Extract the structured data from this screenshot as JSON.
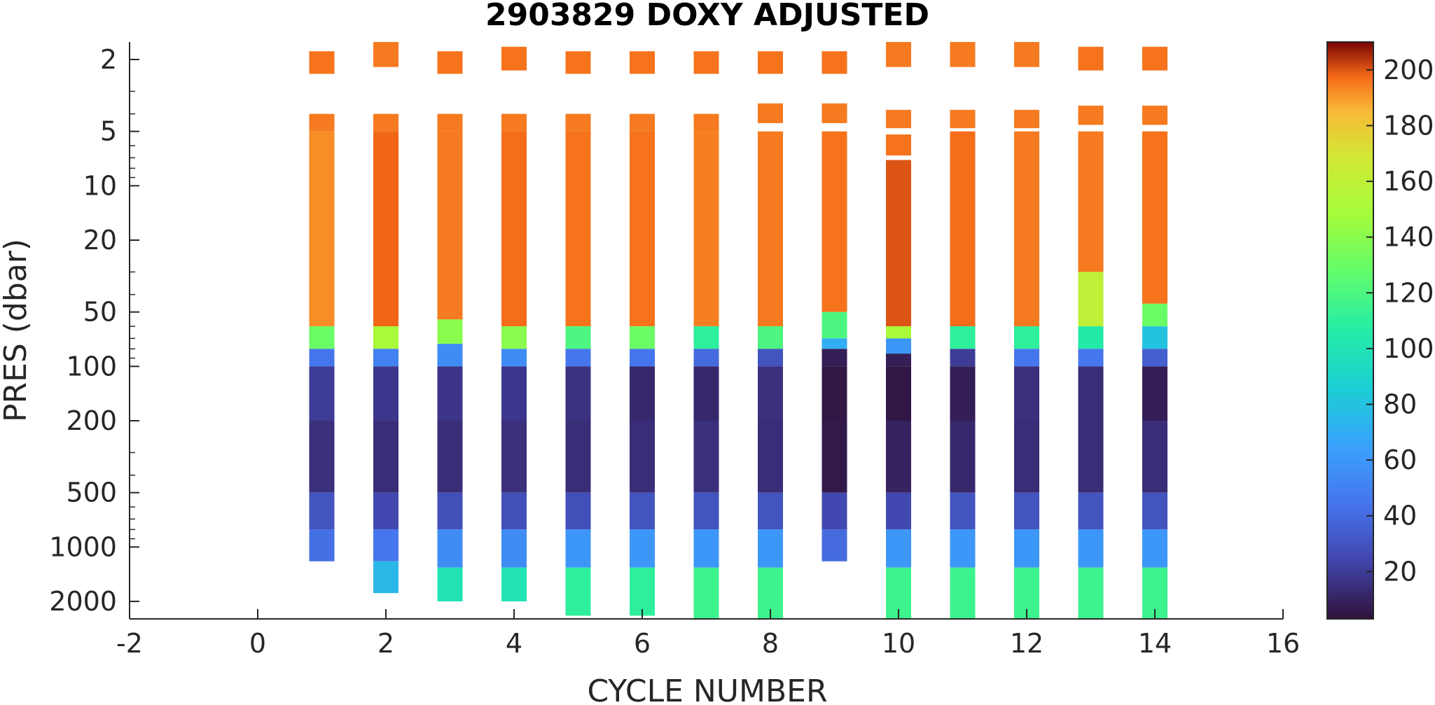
{
  "chart_data": {
    "type": "heatmap",
    "title": "2903829  DOXY ADJUSTED",
    "xlabel": "CYCLE NUMBER",
    "ylabel": "PRES (dbar)",
    "xlim": [
      -2,
      16
    ],
    "x_ticks": [
      -2,
      0,
      2,
      4,
      6,
      8,
      10,
      12,
      14,
      16
    ],
    "y_scale": "log",
    "y_reversed": true,
    "ylim": [
      1.6,
      2500
    ],
    "y_ticks": [
      2,
      5,
      10,
      20,
      50,
      100,
      200,
      500,
      1000,
      2000
    ],
    "colorbar": {
      "colormap": "turbo",
      "clim": [
        3,
        210
      ],
      "ticks": [
        20,
        40,
        60,
        80,
        100,
        120,
        140,
        160,
        180,
        200
      ],
      "position": "right"
    },
    "profiles": [
      {
        "cycle": 1,
        "surface": [
          [
            1.8,
            2.4,
            196
          ]
        ],
        "profile": [
          [
            4.0,
            5.0,
            195
          ],
          [
            5.0,
            60,
            192
          ],
          [
            60,
            80,
            130
          ],
          [
            80,
            100,
            45
          ],
          [
            100,
            200,
            20
          ],
          [
            200,
            500,
            15
          ],
          [
            500,
            800,
            30
          ],
          [
            800,
            1200,
            42
          ]
        ]
      },
      {
        "cycle": 2,
        "surface": [
          [
            1.6,
            2.2,
            195
          ]
        ],
        "profile": [
          [
            4.0,
            5.0,
            195
          ],
          [
            5.0,
            60,
            198
          ],
          [
            60,
            80,
            150
          ],
          [
            80,
            100,
            50
          ],
          [
            100,
            200,
            18
          ],
          [
            200,
            500,
            14
          ],
          [
            500,
            800,
            25
          ],
          [
            800,
            1200,
            45
          ],
          [
            1200,
            1800,
            75
          ]
        ]
      },
      {
        "cycle": 3,
        "surface": [
          [
            1.8,
            2.4,
            196
          ]
        ],
        "profile": [
          [
            4.0,
            5.0,
            195
          ],
          [
            5.0,
            55,
            195
          ],
          [
            55,
            75,
            140
          ],
          [
            75,
            100,
            55
          ],
          [
            100,
            200,
            17
          ],
          [
            200,
            500,
            14
          ],
          [
            500,
            800,
            28
          ],
          [
            800,
            1300,
            55
          ],
          [
            1300,
            2000,
            100
          ]
        ]
      },
      {
        "cycle": 4,
        "surface": [
          [
            1.7,
            2.3,
            196
          ]
        ],
        "profile": [
          [
            4.0,
            5.0,
            195
          ],
          [
            5.0,
            60,
            197
          ],
          [
            60,
            80,
            140
          ],
          [
            80,
            100,
            55
          ],
          [
            100,
            200,
            18
          ],
          [
            200,
            500,
            15
          ],
          [
            500,
            800,
            28
          ],
          [
            800,
            1300,
            55
          ],
          [
            1300,
            2000,
            100
          ]
        ]
      },
      {
        "cycle": 5,
        "surface": [
          [
            1.8,
            2.4,
            196
          ]
        ],
        "profile": [
          [
            4.0,
            5.0,
            195
          ],
          [
            5.0,
            60,
            196
          ],
          [
            60,
            80,
            120
          ],
          [
            80,
            100,
            45
          ],
          [
            100,
            200,
            16
          ],
          [
            200,
            500,
            14
          ],
          [
            500,
            800,
            28
          ],
          [
            800,
            1300,
            60
          ],
          [
            1300,
            2400,
            110
          ]
        ]
      },
      {
        "cycle": 6,
        "surface": [
          [
            1.8,
            2.4,
            196
          ]
        ],
        "profile": [
          [
            4.0,
            5.0,
            195
          ],
          [
            5.0,
            60,
            196
          ],
          [
            60,
            80,
            130
          ],
          [
            80,
            100,
            45
          ],
          [
            100,
            200,
            12
          ],
          [
            200,
            500,
            14
          ],
          [
            500,
            800,
            30
          ],
          [
            800,
            1300,
            60
          ],
          [
            1300,
            2400,
            110
          ]
        ]
      },
      {
        "cycle": 7,
        "surface": [
          [
            1.8,
            2.4,
            196
          ]
        ],
        "profile": [
          [
            4.0,
            5.0,
            195
          ],
          [
            5.0,
            60,
            194
          ],
          [
            60,
            80,
            110
          ],
          [
            80,
            100,
            40
          ],
          [
            100,
            200,
            12
          ],
          [
            200,
            500,
            15
          ],
          [
            500,
            800,
            30
          ],
          [
            800,
            1300,
            60
          ],
          [
            1300,
            2500,
            115
          ]
        ]
      },
      {
        "cycle": 8,
        "surface": [
          [
            1.8,
            2.4,
            196
          ]
        ],
        "profile": [
          [
            3.5,
            4.5,
            195
          ],
          [
            5.0,
            60,
            195
          ],
          [
            60,
            80,
            120
          ],
          [
            80,
            100,
            30
          ],
          [
            100,
            200,
            15
          ],
          [
            200,
            500,
            14
          ],
          [
            500,
            800,
            30
          ],
          [
            800,
            1300,
            60
          ],
          [
            1300,
            2500,
            115
          ]
        ]
      },
      {
        "cycle": 9,
        "surface": [
          [
            1.8,
            2.4,
            196
          ]
        ],
        "profile": [
          [
            3.5,
            4.5,
            195
          ],
          [
            5.0,
            50,
            196
          ],
          [
            50,
            70,
            120
          ],
          [
            70,
            80,
            70
          ],
          [
            80,
            100,
            8
          ],
          [
            100,
            200,
            5
          ],
          [
            200,
            500,
            6
          ],
          [
            500,
            800,
            25
          ],
          [
            800,
            1200,
            40
          ]
        ]
      },
      {
        "cycle": 10,
        "surface": [
          [
            1.6,
            2.2,
            195
          ]
        ],
        "profile": [
          [
            3.8,
            4.8,
            195
          ],
          [
            5.2,
            6.8,
            196
          ],
          [
            7.2,
            60,
            200
          ],
          [
            60,
            70,
            150
          ],
          [
            70,
            85,
            60
          ],
          [
            85,
            100,
            8
          ],
          [
            100,
            200,
            5
          ],
          [
            200,
            500,
            10
          ],
          [
            500,
            800,
            25
          ],
          [
            800,
            1300,
            60
          ],
          [
            1300,
            2500,
            115
          ]
        ]
      },
      {
        "cycle": 11,
        "surface": [
          [
            1.6,
            2.2,
            195
          ]
        ],
        "profile": [
          [
            3.8,
            4.8,
            195
          ],
          [
            5.0,
            60,
            197
          ],
          [
            60,
            80,
            110
          ],
          [
            80,
            100,
            20
          ],
          [
            100,
            200,
            8
          ],
          [
            200,
            500,
            12
          ],
          [
            500,
            800,
            30
          ],
          [
            800,
            1300,
            60
          ],
          [
            1300,
            2500,
            115
          ]
        ]
      },
      {
        "cycle": 12,
        "surface": [
          [
            1.6,
            2.2,
            195
          ]
        ],
        "profile": [
          [
            3.8,
            4.8,
            195
          ],
          [
            5.0,
            60,
            195
          ],
          [
            60,
            80,
            110
          ],
          [
            80,
            100,
            45
          ],
          [
            100,
            200,
            15
          ],
          [
            200,
            500,
            14
          ],
          [
            500,
            800,
            30
          ],
          [
            800,
            1300,
            60
          ],
          [
            1300,
            2500,
            115
          ]
        ]
      },
      {
        "cycle": 13,
        "surface": [
          [
            1.7,
            2.3,
            196
          ]
        ],
        "profile": [
          [
            3.6,
            4.6,
            195
          ],
          [
            5.0,
            30,
            195
          ],
          [
            30,
            60,
            160
          ],
          [
            60,
            80,
            105
          ],
          [
            80,
            100,
            45
          ],
          [
            100,
            200,
            14
          ],
          [
            200,
            500,
            14
          ],
          [
            500,
            800,
            30
          ],
          [
            800,
            1300,
            60
          ],
          [
            1300,
            2500,
            115
          ]
        ]
      },
      {
        "cycle": 14,
        "surface": [
          [
            1.7,
            2.3,
            196
          ]
        ],
        "profile": [
          [
            3.6,
            4.6,
            195
          ],
          [
            5.0,
            45,
            196
          ],
          [
            45,
            60,
            130
          ],
          [
            60,
            80,
            80
          ],
          [
            80,
            100,
            35
          ],
          [
            100,
            200,
            8
          ],
          [
            200,
            500,
            14
          ],
          [
            500,
            800,
            30
          ],
          [
            800,
            1300,
            60
          ],
          [
            1300,
            2500,
            115
          ]
        ]
      }
    ]
  }
}
